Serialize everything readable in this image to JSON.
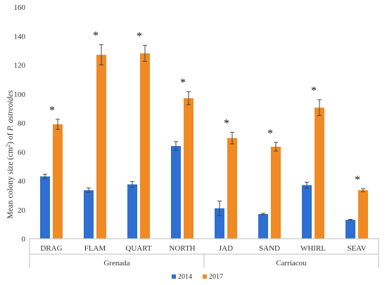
{
  "chart_data": {
    "type": "bar",
    "ylabel_prefix": "Mean colony size (cm",
    "ylabel_sup": "2",
    "ylabel_mid": ") of ",
    "ylabel_species": "P. astreoides",
    "ylim": [
      0,
      160
    ],
    "yticks": [
      0,
      20,
      40,
      60,
      80,
      100,
      120,
      140,
      160
    ],
    "categories": [
      "DRAG",
      "FLAM",
      "QUART",
      "NORTH",
      "JAD",
      "SAND",
      "WHIRL",
      "SEAV"
    ],
    "groups": [
      {
        "label": "Grenada",
        "start": 0,
        "end": 3
      },
      {
        "label": "Carriacou",
        "start": 4,
        "end": 7
      }
    ],
    "series": [
      {
        "name": "2014",
        "color": "#2e6fd1",
        "values": [
          43,
          33.5,
          37.5,
          64,
          21,
          17,
          37,
          13
        ],
        "errors": [
          1.5,
          1.5,
          2,
          3,
          5,
          0.5,
          2,
          0.3
        ]
      },
      {
        "name": "2017",
        "color": "#f08a24",
        "values": [
          79,
          127,
          128,
          97,
          69.5,
          63.5,
          90.5,
          33.5
        ],
        "errors": [
          3.5,
          7,
          5.5,
          4.5,
          4,
          3,
          5.5,
          1
        ]
      }
    ],
    "significance": [
      "*",
      "*",
      "*",
      "*",
      "*",
      "*",
      "*",
      "*"
    ],
    "legend_position": "bottom-center",
    "grid": false
  }
}
